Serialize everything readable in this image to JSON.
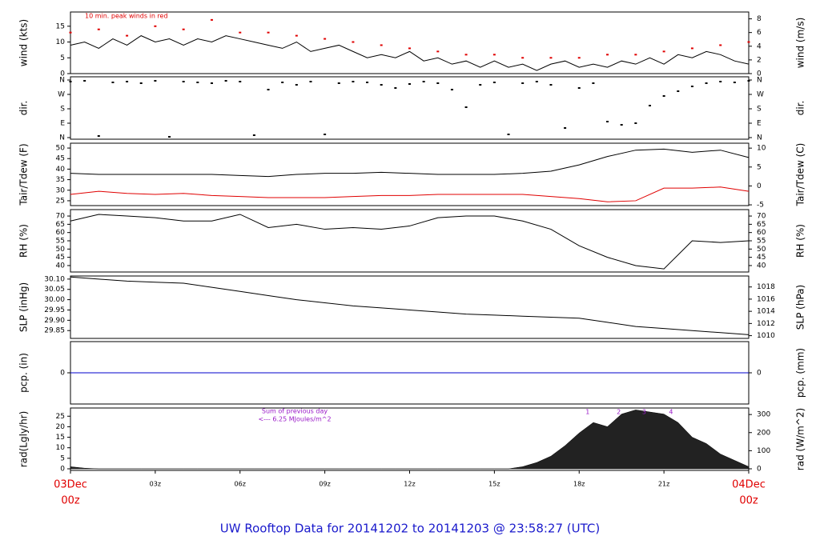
{
  "title": "UW Rooftop Data for 20141202  to  20141203 @ 23:58:27  (UTC)",
  "xaxis": {
    "xlim": [
      0,
      24
    ],
    "xticks": [
      {
        "value": 0,
        "label": [
          "03Dec",
          "00z"
        ]
      },
      {
        "value": 3,
        "label": "03z"
      },
      {
        "value": 6,
        "label": "06z"
      },
      {
        "value": 9,
        "label": "09z"
      },
      {
        "value": 12,
        "label": "12z"
      },
      {
        "value": 15,
        "label": "15z"
      },
      {
        "value": 18,
        "label": "18z"
      },
      {
        "value": 21,
        "label": "21z"
      },
      {
        "value": 24,
        "label": [
          "04Dec",
          "00z"
        ]
      }
    ]
  },
  "chart_data": [
    {
      "type": "line",
      "ylabel": "wind (kts)",
      "y2label": "wind (m/s)",
      "note": "10 min. peak winds in red",
      "ylim": [
        0,
        19.5
      ],
      "yticks": [
        0,
        5,
        10,
        15
      ],
      "y2lim": [
        0,
        9
      ],
      "y2ticks": [
        0,
        2,
        4,
        6,
        8
      ],
      "x": [
        0,
        0.5,
        1,
        1.5,
        2,
        2.5,
        3,
        3.5,
        4,
        4.5,
        5,
        5.5,
        6,
        6.5,
        7,
        7.5,
        8,
        8.5,
        9,
        9.5,
        10,
        10.5,
        11,
        11.5,
        12,
        12.5,
        13,
        13.5,
        14,
        14.5,
        15,
        15.5,
        16,
        16.5,
        17,
        17.5,
        18,
        18.5,
        19,
        19.5,
        20,
        20.5,
        21,
        21.5,
        22,
        22.5,
        23,
        23.5,
        24
      ],
      "series": [
        {
          "color": "#000000",
          "values": [
            9,
            10,
            8,
            11,
            9,
            12,
            10,
            11,
            9,
            11,
            10,
            12,
            11,
            10,
            9,
            8,
            10,
            7,
            8,
            9,
            7,
            5,
            6,
            5,
            7,
            4,
            5,
            3,
            4,
            2,
            4,
            2,
            3,
            1,
            3,
            4,
            2,
            3,
            2,
            4,
            3,
            5,
            3,
            6,
            5,
            7,
            6,
            4,
            3
          ]
        },
        {
          "type": "scatter",
          "color": "#e00000",
          "x": [
            0,
            1,
            2,
            3,
            4,
            5,
            6,
            7,
            8,
            9,
            10,
            11,
            12,
            13,
            14,
            15,
            16,
            17,
            18,
            19,
            20,
            21,
            22,
            23,
            24
          ],
          "values": [
            13,
            14,
            12,
            15,
            14,
            17,
            13,
            13,
            12,
            11,
            10,
            9,
            8,
            7,
            6,
            6,
            5,
            5,
            5,
            6,
            6,
            7,
            8,
            9,
            10
          ]
        }
      ]
    },
    {
      "type": "scatter",
      "ylabel": "dir.",
      "y2label": "dir.",
      "ylim": [
        -10,
        380
      ],
      "yticks": [
        {
          "value": 360,
          "label": "N"
        },
        {
          "value": 270,
          "label": "W"
        },
        {
          "value": 180,
          "label": "S"
        },
        {
          "value": 90,
          "label": "E"
        },
        {
          "value": 0,
          "label": "N"
        }
      ],
      "y2lim": [
        -10,
        380
      ],
      "y2ticks": [
        {
          "value": 360,
          "label": "N"
        },
        {
          "value": 270,
          "label": "W"
        },
        {
          "value": 180,
          "label": "S"
        },
        {
          "value": 90,
          "label": "E"
        },
        {
          "value": 0,
          "label": "N"
        }
      ],
      "x": [
        0,
        0.5,
        1,
        1.5,
        2,
        2.5,
        3,
        3.5,
        4,
        4.5,
        5,
        5.5,
        6,
        6.5,
        7,
        7.5,
        8,
        8.5,
        9,
        9.5,
        10,
        10.5,
        11,
        11.5,
        12,
        12.5,
        13,
        13.5,
        14,
        14.5,
        15,
        15.5,
        16,
        16.5,
        17,
        17.5,
        18,
        18.5,
        19,
        19.5,
        20,
        20.5,
        21,
        21.5,
        22,
        22.5,
        23,
        23.5,
        24
      ],
      "series": [
        {
          "color": "#000000",
          "values": [
            350,
            355,
            10,
            345,
            350,
            340,
            355,
            5,
            350,
            345,
            340,
            355,
            350,
            15,
            300,
            345,
            330,
            350,
            20,
            340,
            350,
            345,
            330,
            310,
            335,
            350,
            340,
            300,
            190,
            330,
            345,
            20,
            340,
            350,
            330,
            60,
            310,
            340,
            100,
            80,
            90,
            200,
            260,
            290,
            320,
            340,
            350,
            345,
            355
          ]
        }
      ]
    },
    {
      "type": "line",
      "ylabel": "Tair/Tdew (F)",
      "y2label": "Tair/Tdew (C)",
      "ylim": [
        22.7,
        52.3
      ],
      "yticks": [
        25,
        30,
        35,
        40,
        45,
        50
      ],
      "y2lim": [
        -5.2,
        11.3
      ],
      "y2ticks": [
        -5,
        0,
        5,
        10
      ],
      "x": [
        0,
        1,
        2,
        3,
        4,
        5,
        6,
        7,
        8,
        9,
        10,
        11,
        12,
        13,
        14,
        15,
        16,
        17,
        18,
        19,
        20,
        21,
        22,
        23,
        24
      ],
      "series": [
        {
          "color": "#000000",
          "values": [
            38,
            37.5,
            37.5,
            37.5,
            37.5,
            37.5,
            37,
            36.5,
            37.5,
            38,
            38,
            38.5,
            38,
            37.5,
            37.5,
            37.5,
            38,
            39,
            42,
            46,
            49,
            49.5,
            48,
            49,
            45.5
          ]
        },
        {
          "color": "#e00000",
          "values": [
            28,
            29.5,
            28.5,
            28,
            28.5,
            27.5,
            27,
            26.5,
            26.5,
            26.5,
            27,
            27.5,
            27.5,
            28,
            28,
            28,
            28,
            27,
            26,
            24.5,
            25,
            31,
            31,
            31.5,
            29.5
          ]
        }
      ]
    },
    {
      "type": "line",
      "ylabel": "RH (%)",
      "y2label": "RH (%)",
      "ylim": [
        36.1,
        73.9
      ],
      "yticks": [
        40,
        45,
        50,
        55,
        60,
        65,
        70
      ],
      "y2lim": [
        36.1,
        73.9
      ],
      "y2ticks": [
        40,
        45,
        50,
        55,
        60,
        65,
        70
      ],
      "x": [
        0,
        1,
        2,
        3,
        4,
        5,
        6,
        7,
        8,
        9,
        10,
        11,
        12,
        13,
        14,
        15,
        16,
        17,
        18,
        19,
        20,
        21,
        22,
        23,
        24
      ],
      "series": [
        {
          "color": "#000000",
          "values": [
            67,
            71,
            70,
            69,
            67,
            67,
            71,
            63,
            65,
            62,
            63,
            62,
            64,
            69,
            70,
            70,
            67,
            62,
            52,
            45,
            40,
            38,
            55,
            54,
            55
          ]
        }
      ]
    },
    {
      "type": "line",
      "ylabel": "SLP (inHg)",
      "y2label": "SLP (hPa)",
      "ylim": [
        29.812,
        30.115
      ],
      "yticks": [
        {
          "value": 29.85,
          "label": "29.85"
        },
        {
          "value": 29.9,
          "label": "29.90"
        },
        {
          "value": 29.95,
          "label": "29.95"
        },
        {
          "value": 30,
          "label": "30.00"
        },
        {
          "value": 30.05,
          "label": "30.05"
        },
        {
          "value": 30.1,
          "label": "30.10"
        }
      ],
      "y2lim": [
        1009.55,
        1019.8
      ],
      "y2ticks": [
        1010,
        1012,
        1014,
        1016,
        1018
      ],
      "x": [
        0,
        1,
        2,
        3,
        4,
        5,
        6,
        7,
        8,
        9,
        10,
        11,
        12,
        13,
        14,
        15,
        16,
        17,
        18,
        19,
        20,
        21,
        22,
        23,
        24
      ],
      "series": [
        {
          "color": "#000000",
          "values": [
            30.11,
            30.1,
            30.09,
            30.085,
            30.08,
            30.06,
            30.04,
            30.02,
            30,
            29.985,
            29.97,
            29.96,
            29.95,
            29.94,
            29.93,
            29.925,
            29.92,
            29.915,
            29.91,
            29.89,
            29.87,
            29.86,
            29.85,
            29.84,
            29.83
          ]
        }
      ]
    },
    {
      "type": "line",
      "ylabel": "pcp. (in)",
      "y2label": "pcp. (mm)",
      "ylim": [
        -1,
        1
      ],
      "yticks": [
        0
      ],
      "y2lim": [
        -25.4,
        25.4
      ],
      "y2ticks": [
        0
      ],
      "x": [
        0,
        24
      ],
      "series": [
        {
          "color": "#0000cc",
          "values": [
            0,
            0
          ]
        }
      ]
    },
    {
      "type": "area",
      "ylabel": "rad(Lgly/hr)",
      "y2label": "rad (W/m^2)",
      "ylim": [
        -0.76,
        28.9
      ],
      "yticks": [
        0,
        5,
        10,
        15,
        20,
        25
      ],
      "y2lim": [
        -8.8,
        336
      ],
      "y2ticks": [
        0,
        100,
        200,
        300
      ],
      "notes": [
        "Sum of previous day",
        "<--- 6.25 MJoules/m^2"
      ],
      "markers": [
        {
          "x": 18.3,
          "label": "1"
        },
        {
          "x": 19.4,
          "label": "2"
        },
        {
          "x": 20.3,
          "label": "3"
        },
        {
          "x": 21.25,
          "label": "4"
        }
      ],
      "x": [
        0,
        0.5,
        1,
        1.5,
        2,
        2.5,
        3,
        3.5,
        4,
        4.5,
        5,
        5.5,
        6,
        6.5,
        7,
        7.5,
        8,
        8.5,
        9,
        9.5,
        10,
        10.5,
        11,
        11.5,
        12,
        12.5,
        13,
        13.5,
        14,
        14.5,
        15,
        15.5,
        16,
        16.5,
        17,
        17.5,
        18,
        18.5,
        19,
        19.5,
        20,
        20.5,
        21,
        21.5,
        22,
        22.5,
        23,
        23.5,
        24
      ],
      "series": [
        {
          "color": "#222222",
          "values": [
            1,
            0.3,
            0,
            0,
            0,
            0,
            0,
            0,
            0,
            0,
            0,
            0,
            0,
            0,
            0,
            0,
            0,
            0,
            0,
            0,
            0,
            0,
            0,
            0,
            0,
            0,
            0,
            0,
            0,
            0,
            0,
            0,
            1,
            3,
            6,
            11,
            17,
            22,
            20,
            26,
            28,
            27,
            26,
            22,
            15,
            12,
            7,
            4,
            1
          ]
        }
      ]
    }
  ]
}
